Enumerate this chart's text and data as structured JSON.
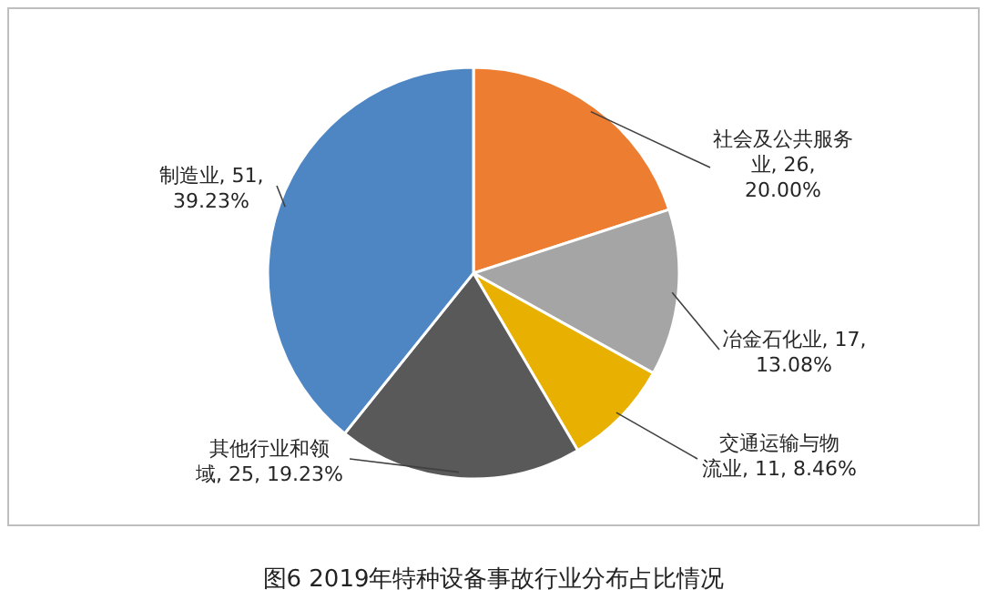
{
  "chart_data": {
    "type": "pie",
    "title": "图6 2019年特种设备事故行业分布占比情况",
    "categories": [
      "社会及公共服务业",
      "冶金石化业",
      "交通运输与物流业",
      "其他行业和领域",
      "制造业"
    ],
    "values": [
      26,
      17,
      11,
      25,
      51
    ],
    "colors": [
      "#ed7d31",
      "#a5a5a5",
      "#e8b000",
      "#595959",
      "#4e86c4"
    ],
    "value_labels": [
      "26, 20.00%",
      "17, 13.08%",
      "11, 8.46%",
      "25, 19.23%",
      "51, 39.23%"
    ]
  }
}
